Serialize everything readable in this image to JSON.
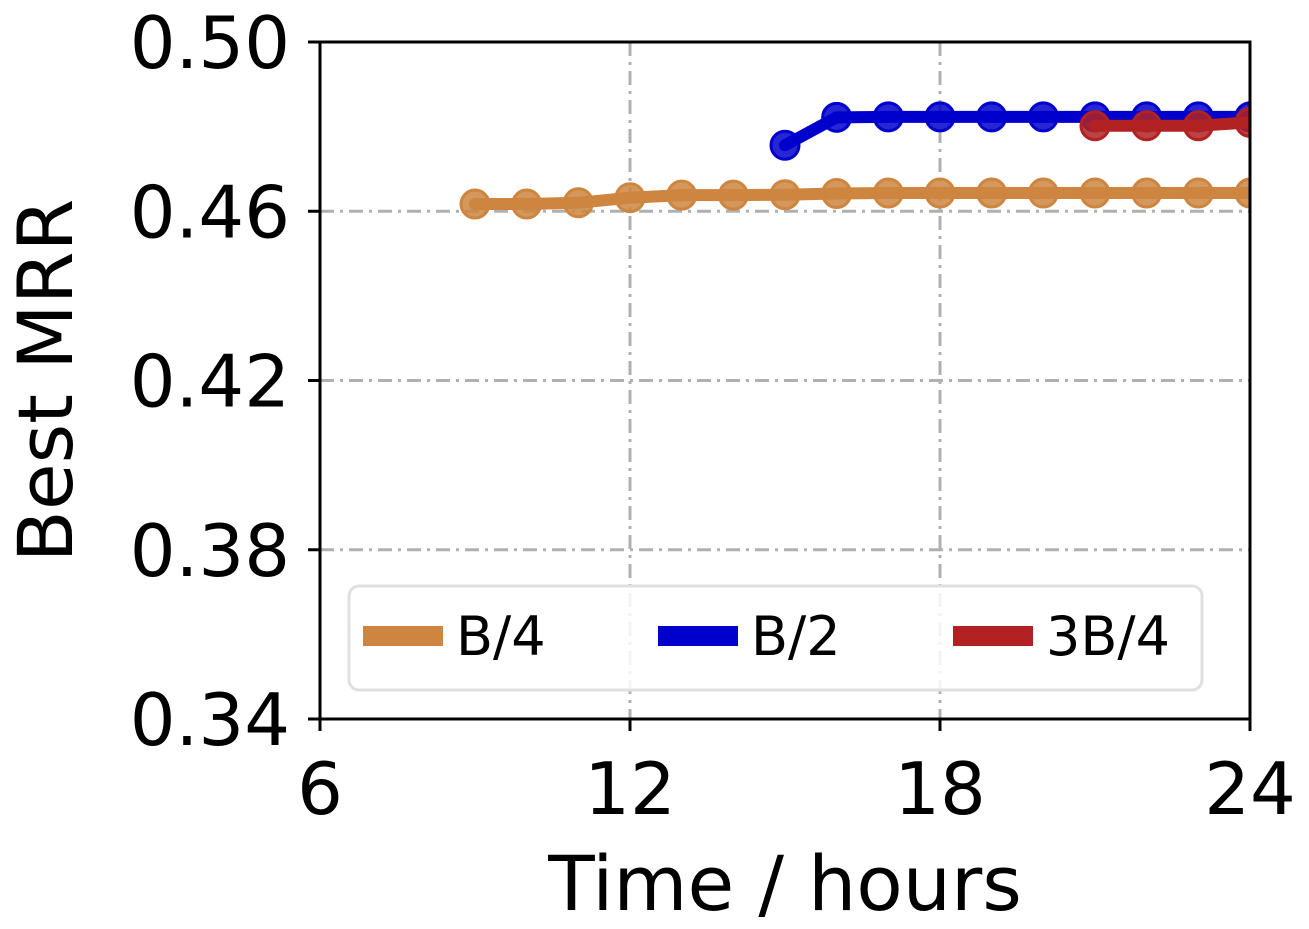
{
  "chart_data": {
    "type": "line",
    "xlabel": "Time / hours",
    "ylabel": "Best MRR",
    "xlim": [
      6,
      24
    ],
    "ylim": [
      0.34,
      0.5
    ],
    "xticks": [
      6,
      12,
      18,
      24
    ],
    "yticks": [
      0.34,
      0.38,
      0.42,
      0.46,
      0.5
    ],
    "xtick_labels": [
      "6",
      "12",
      "18",
      "24"
    ],
    "ytick_labels": [
      "0.34",
      "0.38",
      "0.42",
      "0.46",
      "0.50"
    ],
    "grid": true,
    "legend_position": "lower-center",
    "series": [
      {
        "name": "B/4",
        "color": "#cd853f",
        "x": [
          9,
          10,
          11,
          12,
          13,
          14,
          15,
          16,
          17,
          18,
          19,
          20,
          21,
          22,
          23,
          24
        ],
        "y": [
          0.4617,
          0.4617,
          0.462,
          0.4632,
          0.4638,
          0.4638,
          0.4639,
          0.4642,
          0.4643,
          0.4643,
          0.4643,
          0.4643,
          0.4643,
          0.4643,
          0.4643,
          0.4643
        ]
      },
      {
        "name": "B/2",
        "color": "#0000cd",
        "x": [
          15,
          16,
          17,
          18,
          19,
          20,
          21,
          22,
          23,
          24
        ],
        "y": [
          0.4756,
          0.4822,
          0.4823,
          0.4823,
          0.4823,
          0.4823,
          0.4823,
          0.4823,
          0.4823,
          0.4823
        ]
      },
      {
        "name": "3B/4",
        "color": "#b22222",
        "x": [
          21,
          22,
          23,
          24
        ],
        "y": [
          0.4802,
          0.4802,
          0.4802,
          0.481
        ]
      }
    ]
  }
}
